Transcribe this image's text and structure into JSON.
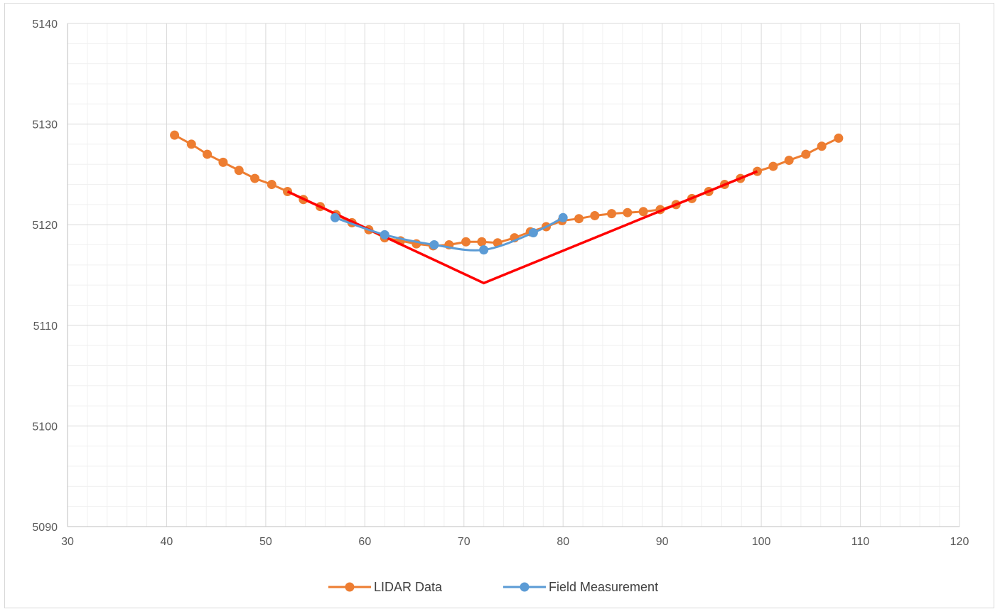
{
  "chart_data": {
    "type": "line",
    "title": "",
    "xlabel": "",
    "ylabel": "",
    "xlim": [
      30,
      120
    ],
    "ylim": [
      5090,
      5140
    ],
    "x_ticks": [
      "30",
      "40",
      "50",
      "60",
      "70",
      "80",
      "90",
      "100",
      "110",
      "120"
    ],
    "y_ticks": [
      "5090",
      "5100",
      "5110",
      "5120",
      "5130",
      "5140"
    ],
    "x_tick_values": [
      30,
      40,
      50,
      60,
      70,
      80,
      90,
      100,
      110,
      120
    ],
    "y_tick_values": [
      5090,
      5100,
      5110,
      5120,
      5130,
      5140
    ],
    "grid": "major and minor",
    "legend_position": "bottom",
    "series": [
      {
        "name": "LIDAR Data",
        "color": "#ed7d31",
        "marker": "circle",
        "smooth": false,
        "points": [
          [
            40.8,
            5128.9
          ],
          [
            42.5,
            5128.0
          ],
          [
            44.1,
            5127.0
          ],
          [
            45.7,
            5126.2
          ],
          [
            47.3,
            5125.4
          ],
          [
            48.9,
            5124.6
          ],
          [
            50.6,
            5124.0
          ],
          [
            52.2,
            5123.3
          ],
          [
            53.8,
            5122.5
          ],
          [
            55.5,
            5121.8
          ],
          [
            57.1,
            5121.0
          ],
          [
            58.7,
            5120.2
          ],
          [
            60.4,
            5119.5
          ],
          [
            62.0,
            5118.7
          ],
          [
            63.6,
            5118.4
          ],
          [
            65.2,
            5118.1
          ],
          [
            66.9,
            5117.9
          ],
          [
            68.5,
            5118.0
          ],
          [
            70.2,
            5118.3
          ],
          [
            71.8,
            5118.3
          ],
          [
            73.4,
            5118.2
          ],
          [
            75.1,
            5118.7
          ],
          [
            76.7,
            5119.3
          ],
          [
            78.3,
            5119.8
          ],
          [
            79.9,
            5120.4
          ],
          [
            81.6,
            5120.6
          ],
          [
            83.2,
            5120.9
          ],
          [
            84.9,
            5121.1
          ],
          [
            86.5,
            5121.2
          ],
          [
            88.1,
            5121.3
          ],
          [
            89.8,
            5121.5
          ],
          [
            91.4,
            5122.0
          ],
          [
            93.0,
            5122.6
          ],
          [
            94.7,
            5123.3
          ],
          [
            96.3,
            5124.0
          ],
          [
            97.9,
            5124.6
          ],
          [
            99.6,
            5125.3
          ],
          [
            101.2,
            5125.8
          ],
          [
            102.8,
            5126.4
          ],
          [
            104.5,
            5127.0
          ],
          [
            106.1,
            5127.8
          ],
          [
            107.8,
            5128.6
          ]
        ]
      },
      {
        "name": "Field Measurement",
        "color": "#5b9bd5",
        "marker": "circle",
        "smooth": true,
        "points": [
          [
            57.0,
            5120.7
          ],
          [
            62.0,
            5119.0
          ],
          [
            67.0,
            5118.0
          ],
          [
            72.0,
            5117.5
          ],
          [
            77.0,
            5119.2
          ],
          [
            80.0,
            5120.7
          ]
        ]
      },
      {
        "color": "#ff0000",
        "marker": "none",
        "smooth": false,
        "points": [
          [
            52.2,
            5123.3
          ],
          [
            72.0,
            5114.2
          ],
          [
            99.6,
            5125.3
          ]
        ]
      }
    ]
  }
}
